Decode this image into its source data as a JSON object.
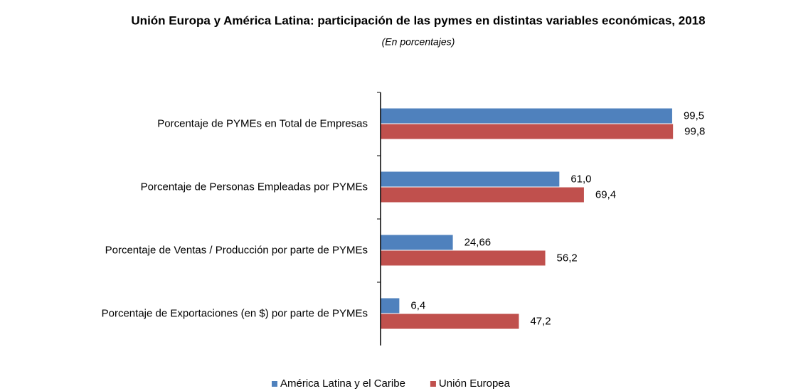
{
  "chart_data": {
    "type": "barh",
    "title": "Unión Europa y América Latina: participación de las pymes en distintas variables económicas, 2018",
    "subtitle": "(En porcentajes)",
    "categories": [
      "Porcentaje de PYMEs en Total de Empresas",
      "Porcentaje de Personas Empleadas por PYMEs",
      "Porcentaje de Ventas / Producción por parte de PYMEs",
      "Porcentaje de Exportaciones (en $) por parte de PYMEs"
    ],
    "series": [
      {
        "name": "América Latina y el Caribe",
        "color": "#4f81bd",
        "values": [
          99.5,
          61.0,
          24.66,
          6.4
        ],
        "value_labels": [
          "99,5",
          "61,0",
          "24,66",
          "6,4"
        ]
      },
      {
        "name": "Unión Europea",
        "color": "#c0504d",
        "values": [
          99.8,
          69.4,
          56.2,
          47.2
        ],
        "value_labels": [
          "99,8",
          "69,4",
          "56,2",
          "47,2"
        ]
      }
    ],
    "xlim": [
      0,
      100
    ],
    "legend": "bottom"
  }
}
